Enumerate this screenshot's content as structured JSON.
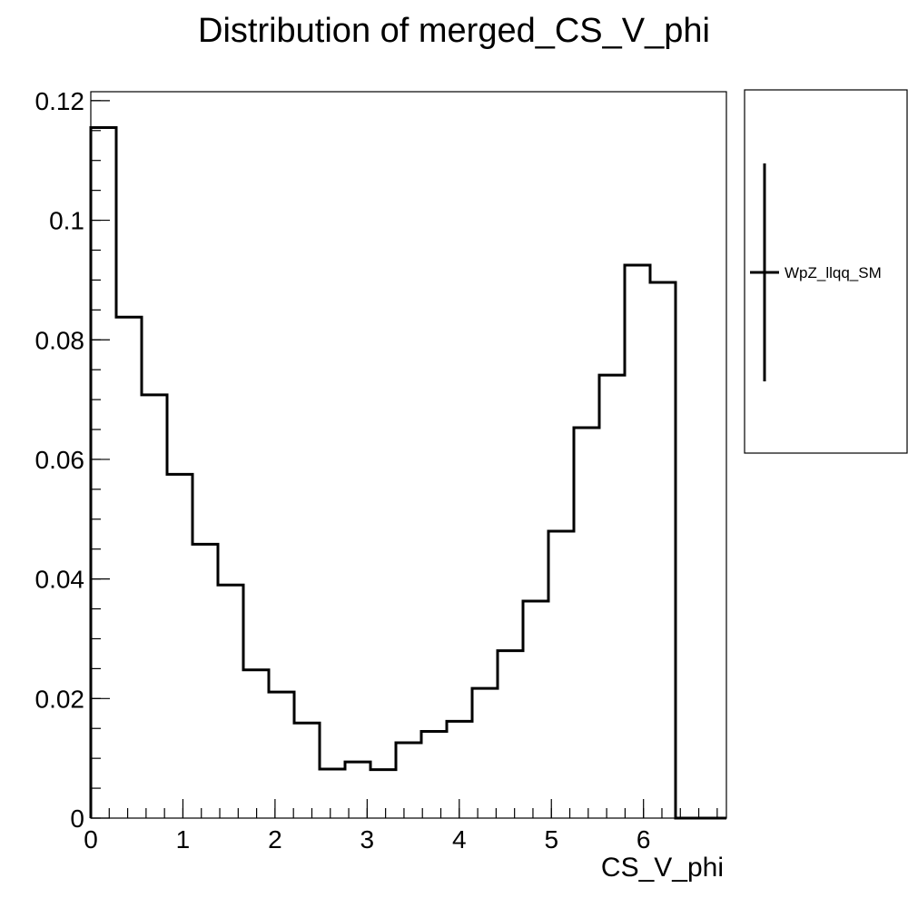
{
  "chart_data": {
    "type": "bar",
    "title": "Distribution of merged_CS_V_phi",
    "xlabel": "CS_V_phi",
    "ylabel": "",
    "xlim": [
      0,
      6.9
    ],
    "ylim": [
      0,
      0.1215
    ],
    "x_ticks": [
      0,
      1,
      2,
      3,
      4,
      5,
      6
    ],
    "x_tick_labels": [
      "0",
      "1",
      "2",
      "3",
      "4",
      "5",
      "6"
    ],
    "y_ticks": [
      0,
      0.02,
      0.04,
      0.06,
      0.08,
      0.1,
      0.12
    ],
    "y_tick_labels": [
      "0",
      "0.02",
      "0.04",
      "0.06",
      "0.08",
      "0.1",
      "0.12"
    ],
    "bin_edges": [
      0,
      0.276,
      0.552,
      0.828,
      1.104,
      1.38,
      1.656,
      1.932,
      2.208,
      2.484,
      2.76,
      3.036,
      3.312,
      3.588,
      3.864,
      4.14,
      4.416,
      4.692,
      4.968,
      5.244,
      5.52,
      5.796,
      6.072,
      6.348,
      6.624,
      6.9
    ],
    "series": [
      {
        "name": "WpZ_llqq_SM",
        "values": [
          0.1155,
          0.0838,
          0.0708,
          0.0575,
          0.0458,
          0.039,
          0.0248,
          0.0211,
          0.0159,
          0.0082,
          0.0094,
          0.0081,
          0.0126,
          0.0145,
          0.0162,
          0.0217,
          0.028,
          0.0363,
          0.048,
          0.0653,
          0.0741,
          0.0925,
          0.0896,
          0,
          0
        ]
      }
    ],
    "legend_position": "right",
    "grid": false
  }
}
